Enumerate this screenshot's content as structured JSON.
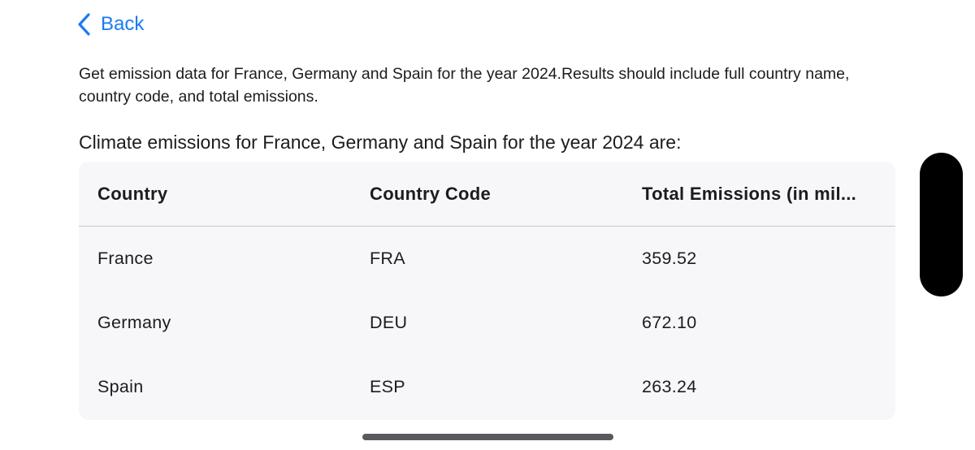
{
  "nav": {
    "back_label": "Back"
  },
  "prompt_text": "Get emission data for France, Germany and Spain for the year 2024.Results should include full country name, country code, and total emissions.",
  "answer_intro": "Climate emissions for France, Germany and Spain for the year 2024 are:",
  "table": {
    "headers": [
      "Country",
      "Country Code",
      "Total Emissions (in mil..."
    ],
    "rows": [
      [
        "France",
        "FRA",
        "359.52"
      ],
      [
        "Germany",
        "DEU",
        "672.10"
      ],
      [
        "Spain",
        "ESP",
        "263.24"
      ]
    ]
  },
  "colors": {
    "accent": "#1a7cf0",
    "table_background": "#f7f7f9",
    "text": "#1c1c1e"
  },
  "icons": {
    "back": "chevron-left-icon"
  }
}
